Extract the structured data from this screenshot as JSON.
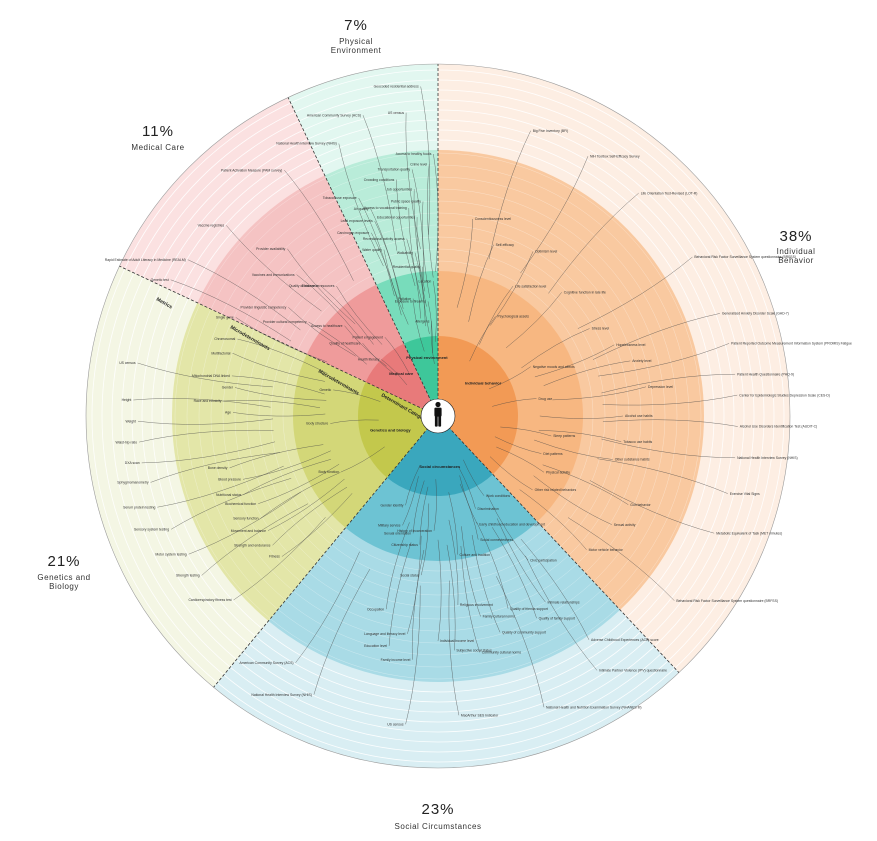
{
  "center": {
    "cx": 438,
    "cy": 416
  },
  "radii": {
    "outer": 352,
    "level3": 266,
    "level2": 145,
    "level1": 80,
    "hub": 16
  },
  "colors": {
    "individual": {
      "outer": "#fdeee3",
      "mid": "#f9c9a0",
      "inner": "#f7b781",
      "core": "#f29a55"
    },
    "social": {
      "outer": "#d9eef3",
      "mid": "#a9dbe6",
      "inner": "#6dc3d3",
      "core": "#3aa7bd"
    },
    "genetics": {
      "outer": "#f4f6e4",
      "mid": "#e3e6a8",
      "inner": "#d3d778",
      "core": "#c3c84c"
    },
    "medical": {
      "outer": "#fbe1e1",
      "mid": "#f5c3c3",
      "inner": "#ef9b9b",
      "core": "#e87a7a"
    },
    "physical": {
      "outer": "#e2f7f0",
      "mid": "#b9ecd9",
      "inner": "#78dcbb",
      "core": "#3ec79a"
    }
  },
  "sectors": [
    {
      "id": "individual",
      "pct": "38%",
      "name": "Individual Behavior",
      "start": 0,
      "end": 136.8
    },
    {
      "id": "social",
      "pct": "23%",
      "name": "Social Circumstances",
      "start": 136.8,
      "end": 219.6
    },
    {
      "id": "genetics",
      "pct": "21%",
      "name": "Genetics and Biology",
      "start": 219.6,
      "end": 295.2
    },
    {
      "id": "medical",
      "pct": "11%",
      "name": "Medical Care",
      "start": 295.2,
      "end": 334.8
    },
    {
      "id": "physical",
      "pct": "7%",
      "name": "Physical Environment",
      "start": 334.8,
      "end": 360
    }
  ],
  "ring_labels": {
    "determinant": "Determinant Categories",
    "micro": "Microdeterminants",
    "macro": "Macrodeterminants",
    "metrics": "Metrics"
  },
  "categories": [
    {
      "label": "Individual behavior",
      "ang": 55,
      "r": 55
    },
    {
      "label": "Social circumstances",
      "ang": 178,
      "r": 52
    },
    {
      "label": "Genetics and biology",
      "ang": 252,
      "r": 50
    },
    {
      "label": "Medical care",
      "ang": 318,
      "r": 55
    },
    {
      "label": "Physical environment",
      "ang": 349,
      "r": 58
    }
  ],
  "items": [
    {
      "text": "Big Five Inventory (BFI)",
      "ang": 18,
      "r": 300,
      "sector": "individual"
    },
    {
      "text": "NIH Toolbox Self-Efficacy Survey",
      "ang": 30,
      "r": 300,
      "sector": "individual"
    },
    {
      "text": "Life Orientation Test-Revised (LOT-R)",
      "ang": 42,
      "r": 300,
      "sector": "individual"
    },
    {
      "text": "Behavioral Risk Factor Surveillance System questionnaire (BRFSS)",
      "ang": 58,
      "r": 300,
      "sector": "individual"
    },
    {
      "text": "Generalized Anxiety Disorder Scale (GAD-7)",
      "ang": 70,
      "r": 300,
      "sector": "individual"
    },
    {
      "text": "Patient Reported Outcome Measurement Information System (PROMIS) Fatigue",
      "ang": 76,
      "r": 300,
      "sector": "individual"
    },
    {
      "text": "Patient Health Questionnaire (PHQ-9)",
      "ang": 82,
      "r": 300,
      "sector": "individual"
    },
    {
      "text": "Center for Epidemiologic Studies Depression Scale (CES-D)",
      "ang": 86,
      "r": 300,
      "sector": "individual"
    },
    {
      "text": "Alcohol Use Disorders Identification Test (AUDIT-C)",
      "ang": 92,
      "r": 300,
      "sector": "individual"
    },
    {
      "text": "National Health Interview Survey (NHIS)",
      "ang": 98,
      "r": 300,
      "sector": "individual"
    },
    {
      "text": "Exercise Vital Signs",
      "ang": 105,
      "r": 300,
      "sector": "individual"
    },
    {
      "text": "Metabolic Equivalent of Task (MET minutes)",
      "ang": 113,
      "r": 300,
      "sector": "individual"
    },
    {
      "text": "Behavioral Risk Factor Surveillance System questionnaire (BRFSS)",
      "ang": 128,
      "r": 300,
      "sector": "individual"
    },
    {
      "text": "Conscientiousness level",
      "ang": 10,
      "r": 200,
      "sector": "individual"
    },
    {
      "text": "Self-efficacy",
      "ang": 18,
      "r": 180,
      "sector": "individual"
    },
    {
      "text": "Optimism level",
      "ang": 30,
      "r": 190,
      "sector": "individual"
    },
    {
      "text": "Life satisfaction level",
      "ang": 30,
      "r": 150,
      "sector": "individual"
    },
    {
      "text": "Cognitive function in late life",
      "ang": 45,
      "r": 175,
      "sector": "individual"
    },
    {
      "text": "Stress level",
      "ang": 60,
      "r": 175,
      "sector": "individual"
    },
    {
      "text": "Hopelessness level",
      "ang": 68,
      "r": 190,
      "sector": "individual"
    },
    {
      "text": "Anxiety level",
      "ang": 74,
      "r": 200,
      "sector": "individual"
    },
    {
      "text": "Depression level",
      "ang": 82,
      "r": 210,
      "sector": "individual"
    },
    {
      "text": "Psychological assets",
      "ang": 30,
      "r": 115,
      "sector": "individual"
    },
    {
      "text": "Negative moods and affects",
      "ang": 62,
      "r": 105,
      "sector": "individual"
    },
    {
      "text": "Drug use",
      "ang": 80,
      "r": 100,
      "sector": "individual"
    },
    {
      "text": "Alcohol use habits",
      "ang": 90,
      "r": 185,
      "sector": "individual"
    },
    {
      "text": "Tobacco use habits",
      "ang": 98,
      "r": 185,
      "sector": "individual"
    },
    {
      "text": "Other substance habits",
      "ang": 104,
      "r": 180,
      "sector": "individual"
    },
    {
      "text": "Sleep patterns",
      "ang": 100,
      "r": 115,
      "sector": "individual"
    },
    {
      "text": "Diet patterns",
      "ang": 110,
      "r": 110,
      "sector": "individual"
    },
    {
      "text": "Physical activity",
      "ang": 118,
      "r": 120,
      "sector": "individual"
    },
    {
      "text": "Other risk related behaviors",
      "ang": 128,
      "r": 120,
      "sector": "individual"
    },
    {
      "text": "Gun behavior",
      "ang": 115,
      "r": 210,
      "sector": "individual"
    },
    {
      "text": "Sexual activity",
      "ang": 122,
      "r": 205,
      "sector": "individual"
    },
    {
      "text": "Motor vehicle behavior",
      "ang": 132,
      "r": 200,
      "sector": "individual"
    },
    {
      "text": "Work conditions",
      "ang": 150,
      "r": 92,
      "sector": "social"
    },
    {
      "text": "Discrimination",
      "ang": 158,
      "r": 100,
      "sector": "social"
    },
    {
      "text": "Early childhood education and development",
      "ang": 160,
      "r": 115,
      "sector": "social"
    },
    {
      "text": "Social connectedness",
      "ang": 162,
      "r": 130,
      "sector": "social"
    },
    {
      "text": "Gender identity",
      "ang": 200,
      "r": 95,
      "sector": "social"
    },
    {
      "text": "Military service",
      "ang": 198,
      "r": 115,
      "sector": "social"
    },
    {
      "text": "Sexual orientation",
      "ang": 192,
      "r": 120,
      "sector": "social"
    },
    {
      "text": "History of incarceration",
      "ang": 182,
      "r": 115,
      "sector": "social"
    },
    {
      "text": "Citizenship status",
      "ang": 188,
      "r": 130,
      "sector": "social"
    },
    {
      "text": "Culture and tradition",
      "ang": 172,
      "r": 140,
      "sector": "social"
    },
    {
      "text": "Civic participation",
      "ang": 148,
      "r": 170,
      "sector": "social"
    },
    {
      "text": "Social status",
      "ang": 186,
      "r": 160,
      "sector": "social"
    },
    {
      "text": "Occupation",
      "ang": 195,
      "r": 200,
      "sector": "social"
    },
    {
      "text": "Religious involvement",
      "ang": 174,
      "r": 190,
      "sector": "social"
    },
    {
      "text": "Family cultural norms",
      "ang": 168,
      "r": 205,
      "sector": "social"
    },
    {
      "text": "Quality of friends support",
      "ang": 160,
      "r": 205,
      "sector": "social"
    },
    {
      "text": "Intimate relationships",
      "ang": 150,
      "r": 215,
      "sector": "social"
    },
    {
      "text": "Quality of family support",
      "ang": 154,
      "r": 225,
      "sector": "social"
    },
    {
      "text": "Quality of community support",
      "ang": 164,
      "r": 225,
      "sector": "social"
    },
    {
      "text": "Language and literacy level",
      "ang": 188,
      "r": 220,
      "sector": "social"
    },
    {
      "text": "Education level",
      "ang": 192,
      "r": 235,
      "sector": "social"
    },
    {
      "text": "Individual income level",
      "ang": 180,
      "r": 225,
      "sector": "social"
    },
    {
      "text": "Family income level",
      "ang": 186,
      "r": 245,
      "sector": "social"
    },
    {
      "text": "Subjective social status",
      "ang": 176,
      "r": 235,
      "sector": "social"
    },
    {
      "text": "Community cultural norms",
      "ang": 170,
      "r": 240,
      "sector": "social"
    },
    {
      "text": "Adverse Childhood Experiences (ACE) score",
      "ang": 146,
      "r": 270,
      "sector": "social"
    },
    {
      "text": "Intimate Partner Violence (IPV) questionnaire",
      "ang": 148,
      "r": 300,
      "sector": "social"
    },
    {
      "text": "National Health and Nutrition Examination Survey (NHANES III)",
      "ang": 160,
      "r": 310,
      "sector": "social"
    },
    {
      "text": "MacArthur SES Indicator",
      "ang": 176,
      "r": 300,
      "sector": "social"
    },
    {
      "text": "US census",
      "ang": 186,
      "r": 310,
      "sector": "social"
    },
    {
      "text": "National Health Interview Survey (NHIS)",
      "ang": 204,
      "r": 305,
      "sector": "social"
    },
    {
      "text": "American Community Survey (ACS)",
      "ang": 210,
      "r": 285,
      "sector": "social"
    },
    {
      "text": "Body structure",
      "ang": 266,
      "r": 108,
      "sector": "genetics"
    },
    {
      "text": "Body function",
      "ang": 240,
      "r": 112,
      "sector": "genetics"
    },
    {
      "text": "Genetic",
      "ang": 284,
      "r": 108,
      "sector": "genetics"
    },
    {
      "text": "Single gene",
      "ang": 296,
      "r": 225,
      "sector": "genetics"
    },
    {
      "text": "Chromosomal",
      "ang": 291,
      "r": 215,
      "sector": "genetics"
    },
    {
      "text": "Multifactorial",
      "ang": 287,
      "r": 215,
      "sector": "genetics"
    },
    {
      "text": "Mitochondrial DNA linked",
      "ang": 281,
      "r": 210,
      "sector": "genetics"
    },
    {
      "text": "Gender",
      "ang": 278,
      "r": 205,
      "sector": "genetics"
    },
    {
      "text": "Race and ethnicity",
      "ang": 274,
      "r": 215,
      "sector": "genetics"
    },
    {
      "text": "Age",
      "ang": 271,
      "r": 205,
      "sector": "genetics"
    },
    {
      "text": "Bone density",
      "ang": 256,
      "r": 215,
      "sector": "genetics"
    },
    {
      "text": "Blood pressure",
      "ang": 252,
      "r": 205,
      "sector": "genetics"
    },
    {
      "text": "Nutritional status",
      "ang": 248,
      "r": 210,
      "sector": "genetics"
    },
    {
      "text": "Biochemical function",
      "ang": 244,
      "r": 200,
      "sector": "genetics"
    },
    {
      "text": "Sensory function",
      "ang": 240,
      "r": 205,
      "sector": "genetics"
    },
    {
      "text": "Movement and balance",
      "ang": 236,
      "r": 205,
      "sector": "genetics"
    },
    {
      "text": "Strength and endurance",
      "ang": 232,
      "r": 210,
      "sector": "genetics"
    },
    {
      "text": "Fitness",
      "ang": 228,
      "r": 210,
      "sector": "genetics"
    },
    {
      "text": "Genetic test",
      "ang": 297,
      "r": 300,
      "sector": "genetics"
    },
    {
      "text": "US census",
      "ang": 280,
      "r": 305,
      "sector": "genetics"
    },
    {
      "text": "Height",
      "ang": 273,
      "r": 305,
      "sector": "genetics"
    },
    {
      "text": "Weight",
      "ang": 269,
      "r": 300,
      "sector": "genetics"
    },
    {
      "text": "Waist-hip ratio",
      "ang": 265,
      "r": 300,
      "sector": "genetics"
    },
    {
      "text": "DXA scan",
      "ang": 261,
      "r": 300,
      "sector": "genetics"
    },
    {
      "text": "Sphygmomanometry",
      "ang": 257,
      "r": 295,
      "sector": "genetics"
    },
    {
      "text": "Serum protein testing",
      "ang": 252,
      "r": 295,
      "sector": "genetics"
    },
    {
      "text": "Sensory system testing",
      "ang": 247,
      "r": 290,
      "sector": "genetics"
    },
    {
      "text": "Motor system testing",
      "ang": 241,
      "r": 285,
      "sector": "genetics"
    },
    {
      "text": "Strength testing",
      "ang": 236,
      "r": 285,
      "sector": "genetics"
    },
    {
      "text": "Cardiorespiratory fitness test",
      "ang": 228,
      "r": 275,
      "sector": "genetics"
    },
    {
      "text": "Health literacy",
      "ang": 315,
      "r": 80,
      "sector": "medical"
    },
    {
      "text": "Quality of healthcare",
      "ang": 314,
      "r": 105,
      "sector": "medical"
    },
    {
      "text": "Patient engagement",
      "ang": 326,
      "r": 95,
      "sector": "medical"
    },
    {
      "text": "Access to healthcare",
      "ang": 314,
      "r": 130,
      "sector": "medical"
    },
    {
      "text": "Provider cultural competency",
      "ang": 306,
      "r": 160,
      "sector": "medical"
    },
    {
      "text": "Provider linguistic competency",
      "ang": 306,
      "r": 185,
      "sector": "medical"
    },
    {
      "text": "Quality of insurance",
      "ang": 318,
      "r": 175,
      "sector": "medical"
    },
    {
      "text": "Distance to resources",
      "ang": 322,
      "r": 165,
      "sector": "medical"
    },
    {
      "text": "Vaccines and immunizations",
      "ang": 315,
      "r": 200,
      "sector": "medical"
    },
    {
      "text": "Provider availability",
      "ang": 318,
      "r": 225,
      "sector": "medical"
    },
    {
      "text": "Patient Activation Measure (PAM survey)",
      "ang": 328,
      "r": 290,
      "sector": "medical"
    },
    {
      "text": "Vaccine registries",
      "ang": 312,
      "r": 285,
      "sector": "medical"
    },
    {
      "text": "Rapid Estimate of Adult Literacy in Medicine (REALM)",
      "ang": 302,
      "r": 295,
      "sector": "medical"
    },
    {
      "text": "Pollution",
      "ang": 348,
      "r": 120,
      "sector": "physical"
    },
    {
      "text": "Exposure to firearms",
      "ang": 355,
      "r": 115,
      "sector": "physical"
    },
    {
      "text": "Allergens",
      "ang": 356,
      "r": 95,
      "sector": "physical"
    },
    {
      "text": "Location",
      "ang": 358,
      "r": 135,
      "sector": "physical"
    },
    {
      "text": "Residential quality",
      "ang": 354,
      "r": 150,
      "sector": "physical"
    },
    {
      "text": "Walkability",
      "ang": 352,
      "r": 165,
      "sector": "physical"
    },
    {
      "text": "Water quality",
      "ang": 342,
      "r": 175,
      "sector": "physical"
    },
    {
      "text": "Recreational activity access",
      "ang": 350,
      "r": 180,
      "sector": "physical"
    },
    {
      "text": "Access to vocational training",
      "ang": 352,
      "r": 210,
      "sector": "physical"
    },
    {
      "text": "Carcinogen exposure",
      "ang": 340,
      "r": 195,
      "sector": "physical"
    },
    {
      "text": "Educational opportunities",
      "ang": 354,
      "r": 200,
      "sector": "physical"
    },
    {
      "text": "Lead exposure levels",
      "ang": 342,
      "r": 205,
      "sector": "physical"
    },
    {
      "text": "Public space quality",
      "ang": 356,
      "r": 215,
      "sector": "physical"
    },
    {
      "text": "Air quality",
      "ang": 342,
      "r": 218,
      "sector": "physical"
    },
    {
      "text": "Job opportunities",
      "ang": 354,
      "r": 228,
      "sector": "physical"
    },
    {
      "text": "Tobacco use exposure",
      "ang": 340,
      "r": 232,
      "sector": "physical"
    },
    {
      "text": "Crowding conditions",
      "ang": 350,
      "r": 240,
      "sector": "physical"
    },
    {
      "text": "Transportation quality",
      "ang": 354,
      "r": 248,
      "sector": "physical"
    },
    {
      "text": "Crime level",
      "ang": 358,
      "r": 252,
      "sector": "physical"
    },
    {
      "text": "Access to healthy foods",
      "ang": 359,
      "r": 262,
      "sector": "physical"
    },
    {
      "text": "National Health Interview Survey (NHIS)",
      "ang": 340,
      "r": 290,
      "sector": "physical"
    },
    {
      "text": "American Community Survey (ACS)",
      "ang": 346,
      "r": 310,
      "sector": "physical"
    },
    {
      "text": "US census",
      "ang": 354,
      "r": 305,
      "sector": "physical"
    },
    {
      "text": "Geocoded residential address",
      "ang": 357,
      "r": 330,
      "sector": "physical"
    }
  ]
}
